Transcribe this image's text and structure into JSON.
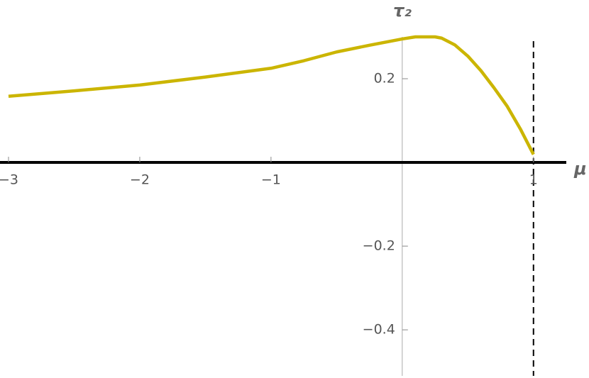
{
  "chart_data": {
    "type": "line",
    "x_label": "μ",
    "y_label": "τ₂",
    "x": [
      -3,
      -2.5,
      -2,
      -1.5,
      -1,
      -0.75,
      -0.5,
      -0.25,
      0,
      0.1,
      0.2,
      0.25,
      0.3,
      0.4,
      0.5,
      0.6,
      0.7,
      0.8,
      0.9,
      1
    ],
    "series": [
      {
        "color": "#cbb500",
        "values": [
          0.158,
          0.171,
          0.185,
          0.204,
          0.225,
          0.243,
          0.264,
          0.28,
          0.295,
          0.3,
          0.3,
          0.3,
          0.297,
          0.281,
          0.254,
          0.219,
          0.178,
          0.134,
          0.08,
          0.019
        ]
      }
    ],
    "xlim": [
      -3,
      1.25
    ],
    "ylim": [
      -0.51,
      0.3
    ],
    "xticks": [
      {
        "value": -3,
        "label": "−3"
      },
      {
        "value": -2,
        "label": "−2"
      },
      {
        "value": -1,
        "label": "−1"
      },
      1
    ],
    "yticks": [
      0.2,
      {
        "value": -0.2,
        "label": "−0.2"
      },
      {
        "value": -0.4,
        "label": "−0.4"
      }
    ],
    "vlines": [
      1
    ]
  }
}
